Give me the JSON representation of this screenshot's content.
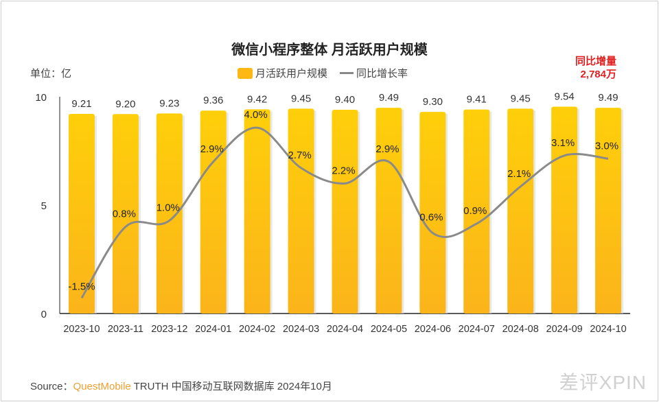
{
  "chart_data": {
    "type": "bar",
    "title": "微信小程序整体 月活跃用户规模",
    "unit_label": "单位：亿",
    "categories": [
      "2023-10",
      "2023-11",
      "2023-12",
      "2024-01",
      "2024-02",
      "2024-03",
      "2024-04",
      "2024-05",
      "2024-06",
      "2024-07",
      "2024-08",
      "2024-09",
      "2024-10"
    ],
    "series": [
      {
        "name": "月活跃用户规模",
        "type": "bar",
        "axis": "left",
        "color": "#fdb813",
        "values": [
          9.21,
          9.2,
          9.23,
          9.36,
          9.42,
          9.45,
          9.4,
          9.49,
          9.3,
          9.41,
          9.45,
          9.54,
          9.49
        ],
        "labels": [
          "9.21",
          "9.20",
          "9.23",
          "9.36",
          "9.42",
          "9.45",
          "9.40",
          "9.49",
          "9.30",
          "9.41",
          "9.45",
          "9.54",
          "9.49"
        ]
      },
      {
        "name": "同比增长率",
        "type": "line",
        "axis": "right",
        "smooth": true,
        "color": "#8a8a8a",
        "values": [
          -1.5,
          0.8,
          1.0,
          2.9,
          4.0,
          2.7,
          2.2,
          2.9,
          0.6,
          0.9,
          2.1,
          3.1,
          3.0
        ],
        "labels": [
          "-1.5%",
          "0.8%",
          "1.0%",
          "2.9%",
          "4.0%",
          "2.7%",
          "2.2%",
          "2.9%",
          "0.6%",
          "0.9%",
          "2.1%",
          "3.1%",
          "3.0%"
        ]
      }
    ],
    "ylim": [
      0,
      10
    ],
    "yticks": [
      "0",
      "5",
      "10"
    ],
    "y2lim": [
      -2,
      5
    ],
    "legend": "top-center",
    "grid": false,
    "annotation": {
      "line1": "同比增量",
      "line2": "2,784万",
      "color": "#e02020"
    }
  },
  "legend_labels": {
    "bar": "月活跃用户规模",
    "line": "同比增长率"
  },
  "source": {
    "prefix": "Source：",
    "brand": "QuestMobile",
    "rest": " TRUTH 中国移动互联网数据库 2024年10月"
  },
  "watermark": "差评XPIN"
}
